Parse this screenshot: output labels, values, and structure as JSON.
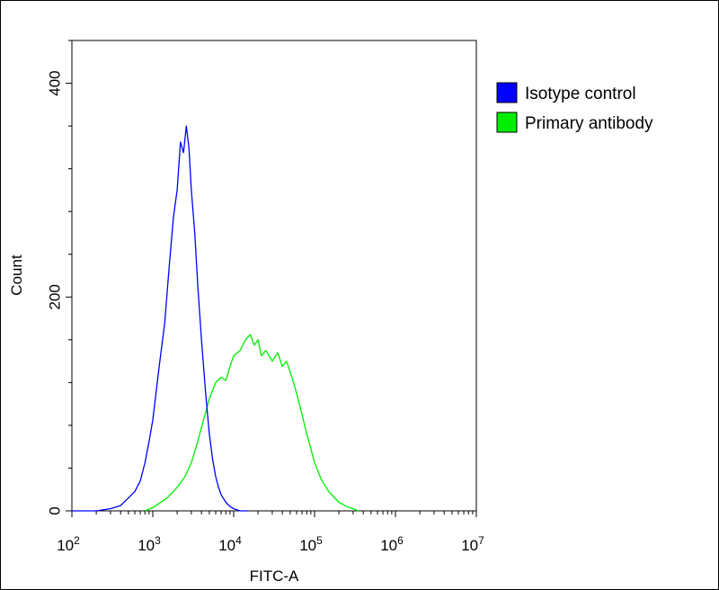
{
  "chart_data": {
    "type": "line",
    "title": "",
    "xlabel": "FITC-A",
    "ylabel": "Count",
    "x_scale": "log",
    "xlim": [
      100,
      10000000
    ],
    "ylim": [
      0,
      440
    ],
    "x_ticks": [
      {
        "value": 100,
        "base": "10",
        "exp": "2"
      },
      {
        "value": 1000,
        "base": "10",
        "exp": "3"
      },
      {
        "value": 10000,
        "base": "10",
        "exp": "4"
      },
      {
        "value": 100000,
        "base": "10",
        "exp": "5"
      },
      {
        "value": 1000000,
        "base": "10",
        "exp": "6"
      },
      {
        "value": 10000000,
        "base": "10",
        "exp": "7"
      }
    ],
    "y_ticks": [
      0,
      200,
      400
    ],
    "grid": false,
    "legend": {
      "placement": "top-right"
    },
    "series": [
      {
        "name": "Isotype control",
        "color": "#0000ff",
        "x": [
          100,
          200,
          300,
          400,
          500,
          600,
          700,
          800,
          900,
          1000,
          1200,
          1400,
          1600,
          1800,
          2000,
          2200,
          2400,
          2600,
          2800,
          3000,
          3300,
          3600,
          4000,
          4500,
          5000,
          5500,
          6000,
          6500,
          7000,
          8000,
          9000,
          10000,
          12000,
          15000
        ],
        "y": [
          0,
          0,
          2,
          5,
          12,
          18,
          28,
          45,
          65,
          85,
          135,
          175,
          230,
          275,
          300,
          345,
          335,
          360,
          340,
          300,
          260,
          210,
          160,
          110,
          72,
          48,
          32,
          22,
          15,
          8,
          4,
          2,
          0,
          0
        ]
      },
      {
        "name": "Primary antibody",
        "color": "#00ee00",
        "x": [
          800,
          1000,
          1500,
          2000,
          2500,
          3000,
          3500,
          4000,
          4500,
          5000,
          6000,
          7000,
          8000,
          9000,
          10000,
          12000,
          14000,
          16000,
          18000,
          20000,
          22000,
          25000,
          30000,
          35000,
          40000,
          45000,
          50000,
          55000,
          60000,
          70000,
          80000,
          90000,
          100000,
          120000,
          150000,
          200000,
          250000,
          300000,
          350000
        ],
        "y": [
          0,
          3,
          12,
          22,
          32,
          45,
          62,
          78,
          92,
          105,
          120,
          125,
          122,
          135,
          145,
          150,
          160,
          165,
          155,
          160,
          145,
          150,
          140,
          148,
          135,
          140,
          130,
          120,
          110,
          90,
          72,
          58,
          45,
          30,
          18,
          8,
          4,
          2,
          0
        ]
      }
    ]
  }
}
